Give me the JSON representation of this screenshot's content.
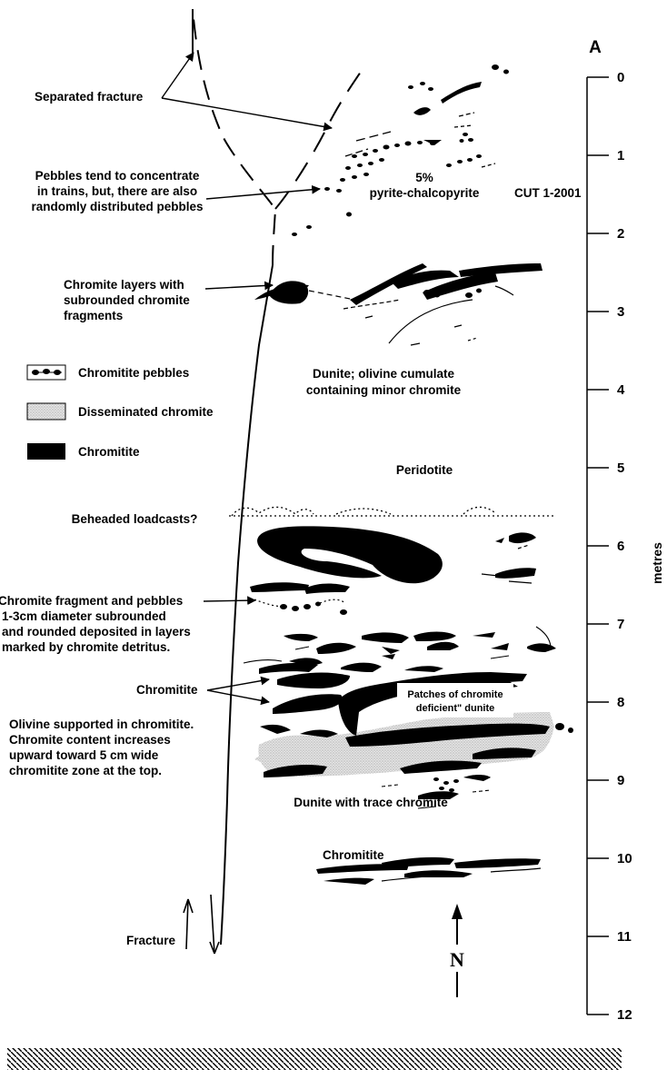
{
  "scale": {
    "letter": "A",
    "unit_label": "metres",
    "ticks": [
      "0",
      "1",
      "2",
      "3",
      "4",
      "5",
      "6",
      "7",
      "8",
      "9",
      "10",
      "11",
      "12"
    ]
  },
  "labels": {
    "separated_fracture": "Separated fracture",
    "pebbles_note": [
      "Pebbles tend to concentrate",
      "in trains, but, there are also",
      "randomly distributed pebbles"
    ],
    "sulfide_pct": "5%",
    "sulfide_name": "pyrite-chalcopyrite",
    "cut": "CUT 1-2001",
    "chromite_layers": [
      "Chromite layers with",
      "subrounded chromite",
      "fragments"
    ],
    "dunite_cumulate": [
      "Dunite; olivine cumulate",
      "containing minor chromite"
    ],
    "peridotite": "Peridotite",
    "loadcasts": "Beheaded loadcasts?",
    "fragments_note": [
      "Chromite fragment and pebbles",
      "1-3cm diameter subrounded",
      "and rounded deposited in layers",
      "marked by chromite detritus."
    ],
    "chromitite_mid": "Chromitite",
    "patches": [
      "Patches of chromite",
      "deficient\" dunite"
    ],
    "olivine_note": [
      "Olivine supported in chromitite.",
      "Chromite content increases",
      "upward toward 5 cm wide",
      "chromitite zone at the top."
    ],
    "dunite_trace": "Dunite with trace chromite",
    "chromitite_low": "Chromitite",
    "fracture": "Fracture",
    "north": "N"
  },
  "legend": [
    {
      "symbol": "pebbles",
      "label": "Chromitite pebbles"
    },
    {
      "symbol": "disseminated",
      "label": "Disseminated chromite"
    },
    {
      "symbol": "solid",
      "label": "Chromitite"
    }
  ]
}
